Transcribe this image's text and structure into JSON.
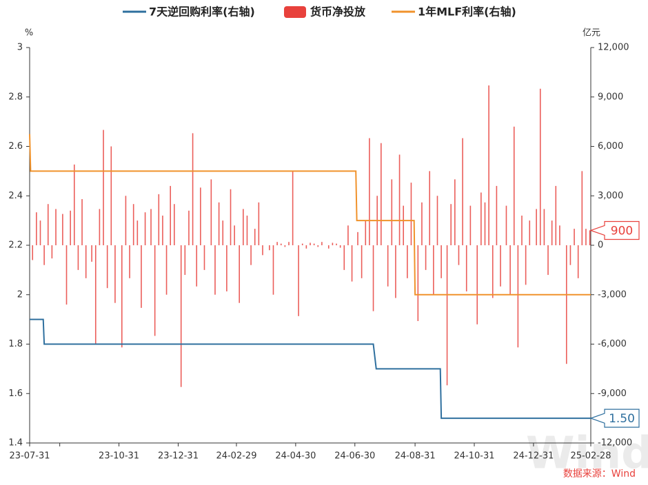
{
  "chart_data": {
    "type": "combo",
    "y_unit": "%",
    "y2_unit": "亿元",
    "source": "数据来源：Wind",
    "watermark": "Wind",
    "xlim": [
      "23-07-31",
      "25-02-28"
    ],
    "xticks": [
      {
        "value": "23-07-31",
        "label": "23-07-31"
      },
      {
        "value": "23-08-31",
        "label": null
      },
      {
        "value": "23-10-31",
        "label": "23-10-31"
      },
      {
        "value": "23-12-31",
        "label": "23-12-31"
      },
      {
        "value": "24-02-29",
        "label": "24-02-29"
      },
      {
        "value": "24-04-30",
        "label": "24-04-30"
      },
      {
        "value": "24-06-30",
        "label": "24-06-30"
      },
      {
        "value": "24-08-31",
        "label": "24-08-31"
      },
      {
        "value": "24-10-31",
        "label": "24-10-31"
      },
      {
        "value": "24-12-31",
        "label": "24-12-31"
      },
      {
        "value": "25-02-28",
        "label": "25-02-28"
      }
    ],
    "ylim": [
      1.4,
      3
    ],
    "yticks": [
      1.4,
      1.6,
      1.8,
      2,
      2.2,
      2.4,
      2.6,
      2.8,
      3
    ],
    "y2lim": [
      -12000,
      12000
    ],
    "y2ticks": [
      {
        "value": -12000,
        "label": "-12,000"
      },
      {
        "value": -9000,
        "label": "-9,000"
      },
      {
        "value": -6000,
        "label": "-6,000"
      },
      {
        "value": -3000,
        "label": "-3,000"
      },
      0,
      {
        "value": 3000,
        "label": "3,000"
      },
      {
        "value": 6000,
        "label": "6,000"
      },
      {
        "value": 9000,
        "label": "9,000"
      },
      {
        "value": 12000,
        "label": "12,000"
      }
    ],
    "grid": false,
    "legend": "top",
    "series": [
      {
        "name": "7天逆回购利率(右轴)",
        "type": "line",
        "color": "#2e6f9e",
        "x": [
          "23-07-31",
          "23-08-14",
          "23-08-15",
          "24-07-19",
          "24-07-22",
          "24-09-26",
          "24-09-27",
          "25-02-28"
        ],
        "values": [
          1.9,
          1.9,
          1.8,
          1.8,
          1.7,
          1.7,
          1.5,
          1.5
        ]
      },
      {
        "name": "货币净投放",
        "type": "bar",
        "axis": "y2",
        "color": "#e8413c",
        "x": [
          "23-08-03",
          "23-08-07",
          "23-08-11",
          "23-08-15",
          "23-08-19",
          "23-08-23",
          "23-08-27",
          "23-09-03",
          "23-09-07",
          "23-09-11",
          "23-09-15",
          "23-09-19",
          "23-09-23",
          "23-09-27",
          "23-10-03",
          "23-10-07",
          "23-10-11",
          "23-10-15",
          "23-10-19",
          "23-10-23",
          "23-10-27",
          "23-11-03",
          "23-11-07",
          "23-11-11",
          "23-11-15",
          "23-11-19",
          "23-11-23",
          "23-11-27",
          "23-12-03",
          "23-12-07",
          "23-12-11",
          "23-12-15",
          "23-12-19",
          "23-12-23",
          "23-12-27",
          "24-01-03",
          "24-01-07",
          "24-01-11",
          "24-01-15",
          "24-01-19",
          "24-01-23",
          "24-01-27",
          "24-02-03",
          "24-02-07",
          "24-02-11",
          "24-02-15",
          "24-02-19",
          "24-02-23",
          "24-02-27",
          "24-03-03",
          "24-03-07",
          "24-03-11",
          "24-03-15",
          "24-03-19",
          "24-03-23",
          "24-03-27",
          "24-04-03",
          "24-04-07",
          "24-04-11",
          "24-04-15",
          "24-04-19",
          "24-04-23",
          "24-04-27",
          "24-05-03",
          "24-05-07",
          "24-05-11",
          "24-05-15",
          "24-05-19",
          "24-05-23",
          "24-05-27",
          "24-06-03",
          "24-06-07",
          "24-06-11",
          "24-06-15",
          "24-06-19",
          "24-06-23",
          "24-06-27",
          "24-07-03",
          "24-07-07",
          "24-07-11",
          "24-07-15",
          "24-07-19",
          "24-07-23",
          "24-07-27",
          "24-08-03",
          "24-08-07",
          "24-08-11",
          "24-08-15",
          "24-08-19",
          "24-08-23",
          "24-08-27",
          "24-09-03",
          "24-09-07",
          "24-09-11",
          "24-09-15",
          "24-09-19",
          "24-09-23",
          "24-09-27",
          "24-10-03",
          "24-10-07",
          "24-10-11",
          "24-10-15",
          "24-10-19",
          "24-10-23",
          "24-10-27",
          "24-11-03",
          "24-11-07",
          "24-11-11",
          "24-11-15",
          "24-11-19",
          "24-11-23",
          "24-11-27",
          "24-12-03",
          "24-12-07",
          "24-12-11",
          "24-12-15",
          "24-12-19",
          "24-12-23",
          "24-12-27",
          "25-01-03",
          "25-01-07",
          "25-01-11",
          "25-01-15",
          "25-01-19",
          "25-01-23",
          "25-01-27",
          "25-02-03",
          "25-02-07",
          "25-02-11",
          "25-02-15",
          "25-02-19",
          "25-02-23",
          "25-02-27"
        ],
        "values": [
          -900,
          2000,
          1500,
          -1200,
          2500,
          -800,
          2200,
          1900,
          -3600,
          2100,
          4900,
          -1500,
          2800,
          -2000,
          -1000,
          -6000,
          2200,
          7000,
          -2600,
          6000,
          -3500,
          -6200,
          3000,
          -2000,
          2500,
          1500,
          -3800,
          2000,
          2200,
          -5500,
          3100,
          1800,
          -3000,
          3600,
          2500,
          -8600,
          -1800,
          2100,
          6800,
          -2500,
          3500,
          -1500,
          4000,
          -3000,
          2600,
          1500,
          -2800,
          3400,
          1200,
          -3500,
          2200,
          1800,
          -1200,
          1000,
          2600,
          -600,
          -300,
          -3000,
          200,
          100,
          -100,
          200,
          4500,
          -4300,
          100,
          -200,
          150,
          100,
          -100,
          200,
          -200,
          150,
          100,
          -150,
          -1500,
          1200,
          -2200,
          800,
          -2000,
          1500,
          6500,
          -4000,
          3000,
          6200,
          -2500,
          4000,
          -3200,
          5500,
          2400,
          -2000,
          3800,
          -4600,
          2600,
          -1500,
          4500,
          -3000,
          3000,
          -2000,
          -8500,
          2500,
          4000,
          -1200,
          6500,
          -2800,
          2400,
          -4800,
          3200,
          2600,
          9700,
          -3200,
          3600,
          -2500,
          2400,
          -3000,
          7200,
          -6200,
          1800,
          -2400,
          1500,
          2200,
          9500,
          2200,
          -1800,
          1500,
          3600,
          1200,
          -7200,
          -1200,
          1000,
          -2000,
          4500,
          1000,
          900
        ]
      },
      {
        "name": "1年MLF利率(右轴)",
        "type": "line",
        "color": "#f0922b",
        "x": [
          "23-07-31",
          "23-08-01",
          "24-07-01",
          "24-07-02",
          "24-08-30",
          "24-08-31",
          "25-02-28"
        ],
        "values": [
          2.65,
          2.5,
          2.5,
          2.3,
          2.3,
          2,
          2
        ]
      }
    ],
    "callouts": [
      {
        "value": 900,
        "axis": "y2",
        "label": "900",
        "color": "#e8413c"
      },
      {
        "value": 1.5,
        "axis": "y",
        "label": "1.50",
        "color": "#2e6f9e"
      }
    ]
  }
}
